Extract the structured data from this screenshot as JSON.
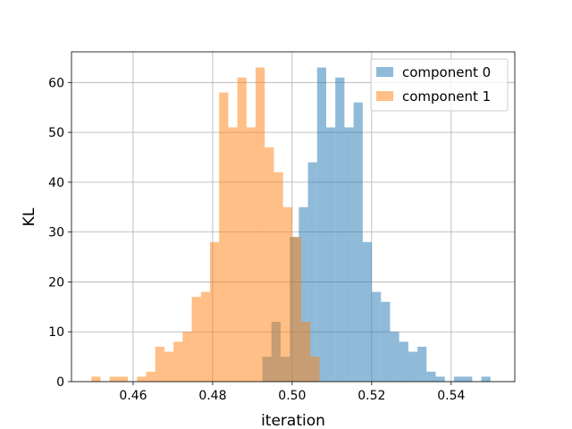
{
  "chart_data": {
    "type": "histogram",
    "title": "",
    "xlabel": "iteration",
    "ylabel": "KL",
    "xlim": [
      0.4445,
      0.556
    ],
    "ylim": [
      0,
      66.15
    ],
    "xticks": [
      0.46,
      0.48,
      0.5,
      0.52,
      0.54
    ],
    "xtick_labels": [
      "0.46",
      "0.48",
      "0.50",
      "0.52",
      "0.54"
    ],
    "yticks": [
      0,
      10,
      20,
      30,
      40,
      50,
      60
    ],
    "ytick_labels": [
      "0",
      "10",
      "20",
      "30",
      "40",
      "50",
      "60"
    ],
    "grid": true,
    "legend_position": "top-right",
    "bar_opacity": 0.5,
    "series": [
      {
        "name": "component 0",
        "color": "#1f77b4",
        "bin_start": 0.4925,
        "bin_width": 0.002295,
        "values": [
          5,
          12,
          5,
          29,
          35,
          44,
          63,
          51,
          61,
          51,
          56,
          28,
          18,
          16,
          10,
          8,
          6,
          7,
          2,
          1,
          0,
          1,
          1,
          0,
          1
        ]
      },
      {
        "name": "component 1",
        "color": "#ff7f0e",
        "bin_start": 0.4495,
        "bin_width": 0.002295,
        "values": [
          1,
          0,
          1,
          1,
          0,
          1,
          2,
          7,
          6,
          8,
          10,
          17,
          18,
          28,
          58,
          51,
          61,
          51,
          63,
          47,
          42,
          35,
          29,
          12,
          5
        ]
      }
    ]
  }
}
